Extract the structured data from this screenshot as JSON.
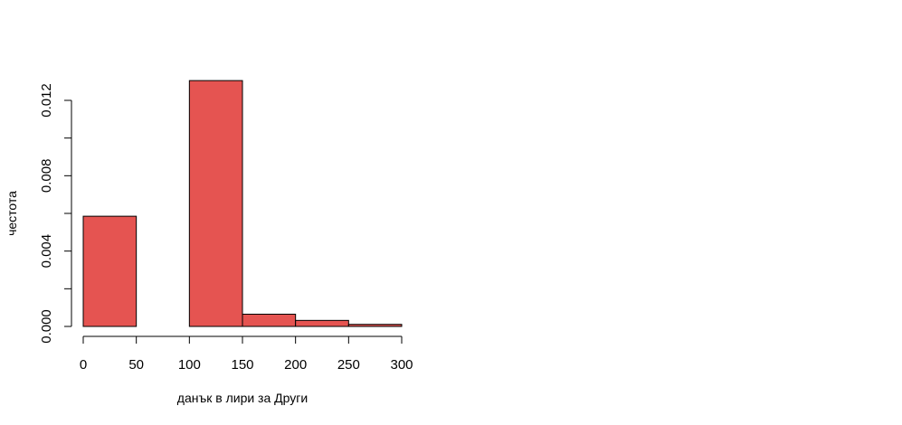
{
  "chart_data": {
    "type": "bar",
    "title": "",
    "xlabel": "данък в лири за Други",
    "ylabel": "честота",
    "bin_edges": [
      0,
      50,
      100,
      150,
      200,
      250,
      300
    ],
    "values": [
      0.00585,
      0.0,
      0.01305,
      0.00065,
      0.00032,
      0.00011
    ],
    "xlim": [
      0,
      300
    ],
    "ylim": [
      0,
      0.012
    ],
    "x_ticks": [
      "0",
      "50",
      "100",
      "150",
      "200",
      "250",
      "300"
    ],
    "y_ticks": [
      "0.000",
      "0.004",
      "0.008",
      "0.012"
    ],
    "y_tick_values": [
      0,
      0.004,
      0.008,
      0.012
    ],
    "y_minor_tick_values": [
      0.002,
      0.006,
      0.01
    ],
    "grid": false,
    "legend": "none",
    "bar_color": "#e55451",
    "bar_edge_color": "#000000"
  }
}
